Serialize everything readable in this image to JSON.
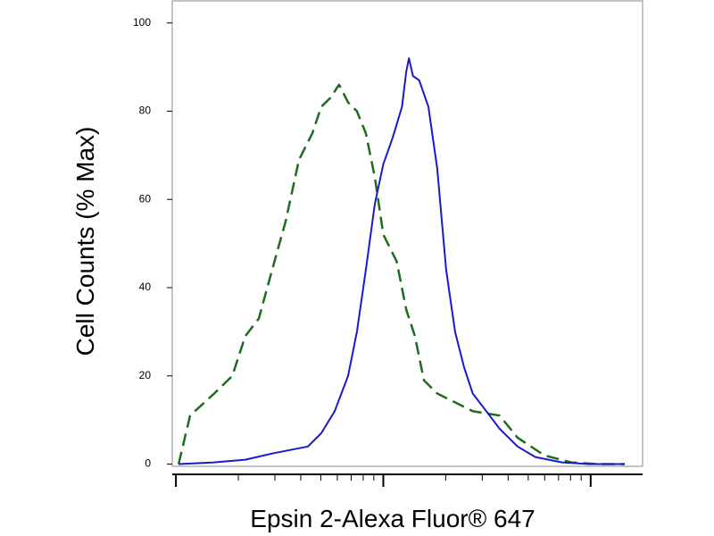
{
  "chart_data": {
    "type": "line",
    "xlabel": "Epsin 2-Alexa Fluor® 647",
    "ylabel": "Cell Counts (% Max)",
    "xscale": "log",
    "xlim": [
      0.96,
      178
    ],
    "xticks": [
      1,
      2,
      3,
      4,
      5,
      6,
      7,
      8,
      9,
      10,
      20,
      30,
      40,
      50,
      60,
      70,
      80,
      90,
      100
    ],
    "ylim": [
      -0.5,
      105
    ],
    "yticks": [
      0,
      20,
      40,
      60,
      80,
      100
    ],
    "series": [
      {
        "color": "#1f6b1f",
        "dash": true,
        "x": [
          1.03,
          1.17,
          1.53,
          1.87,
          2.16,
          2.51,
          2.91,
          3.38,
          3.92,
          4.55,
          5.02,
          5.55,
          6.12,
          6.76,
          7.46,
          8.24,
          9.1,
          10.0,
          11.6,
          12.9,
          14.2,
          15.7,
          18.2,
          22.2,
          27.0,
          36.4,
          44.4,
          59.7,
          80.4,
          108,
          146
        ],
        "values": [
          0,
          11,
          16,
          20,
          29,
          33,
          44,
          55,
          69,
          75,
          81,
          83,
          86,
          82,
          80,
          75,
          65,
          52,
          46,
          35,
          29,
          19,
          16,
          14,
          12,
          11,
          6,
          2,
          0.4,
          0,
          0
        ]
      },
      {
        "color": "#1a1acc",
        "dash": false,
        "x": [
          1.03,
          1.53,
          2.16,
          2.91,
          4.33,
          5.02,
          5.83,
          6.76,
          7.46,
          8.24,
          9.1,
          10.0,
          11.1,
          12.3,
          12.9,
          13.3,
          13.9,
          14.9,
          16.5,
          18.2,
          20.1,
          22.2,
          24.5,
          27.0,
          31.4,
          36.4,
          44.4,
          54.1,
          72.8,
          98.0,
          146
        ],
        "values": [
          0,
          0.4,
          1,
          2.4,
          4,
          7,
          12,
          20,
          30,
          44,
          59,
          68,
          74,
          81,
          89,
          92,
          88,
          87,
          81,
          67,
          44,
          30,
          22,
          16,
          12,
          8,
          4,
          1.6,
          0.4,
          0,
          0
        ]
      }
    ]
  }
}
